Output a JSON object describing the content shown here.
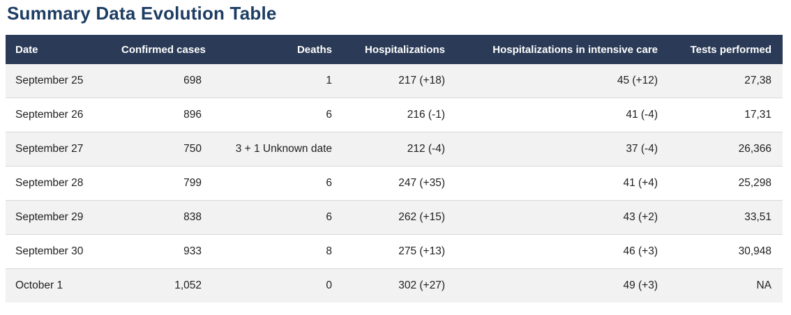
{
  "page": {
    "title": "Summary Data Evolution Table"
  },
  "colors": {
    "title_text": "#1d3d63",
    "header_bg": "#2b3b57",
    "header_text": "#ffffff",
    "row_alt_bg": "#f2f2f2",
    "row_bg": "#ffffff",
    "row_border": "#d8d8d8",
    "cell_text": "#202122"
  },
  "table": {
    "columns": [
      {
        "label": "Date",
        "align": "left"
      },
      {
        "label": "Confirmed cases",
        "align": "right"
      },
      {
        "label": "Deaths",
        "align": "right"
      },
      {
        "label": "Hospitalizations",
        "align": "right"
      },
      {
        "label": "Hospitalizations in intensive care",
        "align": "right"
      },
      {
        "label": "Tests performed",
        "align": "right"
      }
    ],
    "rows": [
      [
        "September 25",
        "698",
        "1",
        "217 (+18)",
        "45 (+12)",
        "27,38"
      ],
      [
        "September 26",
        "896",
        "6",
        "216 (-1)",
        "41 (-4)",
        "17,31"
      ],
      [
        "September 27",
        "750",
        "3 + 1 Unknown date",
        "212 (-4)",
        "37 (-4)",
        "26,366"
      ],
      [
        "September 28",
        "799",
        "6",
        "247 (+35)",
        "41 (+4)",
        "25,298"
      ],
      [
        "September 29",
        "838",
        "6",
        "262 (+15)",
        "43 (+2)",
        "33,51"
      ],
      [
        "September 30",
        "933",
        "8",
        "275 (+13)",
        "46 (+3)",
        "30,948"
      ],
      [
        "October 1",
        "1,052",
        "0",
        "302 (+27)",
        "49 (+3)",
        "NA"
      ]
    ]
  },
  "chart_data": {
    "type": "table",
    "title": "Summary Data Evolution Table",
    "categories": [
      "September 25",
      "September 26",
      "September 27",
      "September 28",
      "September 29",
      "September 30",
      "October 1"
    ],
    "series": [
      {
        "name": "Confirmed cases",
        "values": [
          "698",
          "896",
          "750",
          "799",
          "838",
          "933",
          "1,052"
        ]
      },
      {
        "name": "Deaths",
        "values": [
          "1",
          "6",
          "3 + 1 Unknown date",
          "6",
          "6",
          "8",
          "0"
        ]
      },
      {
        "name": "Hospitalizations",
        "values": [
          "217 (+18)",
          "216 (-1)",
          "212 (-4)",
          "247 (+35)",
          "262 (+15)",
          "275 (+13)",
          "302 (+27)"
        ]
      },
      {
        "name": "Hospitalizations in intensive care",
        "values": [
          "45 (+12)",
          "41 (-4)",
          "37 (-4)",
          "41 (+4)",
          "43 (+2)",
          "46 (+3)",
          "49 (+3)"
        ]
      },
      {
        "name": "Tests performed",
        "values": [
          "27,38",
          "17,31",
          "26,366",
          "25,298",
          "33,51",
          "30,948",
          "NA"
        ]
      }
    ]
  }
}
